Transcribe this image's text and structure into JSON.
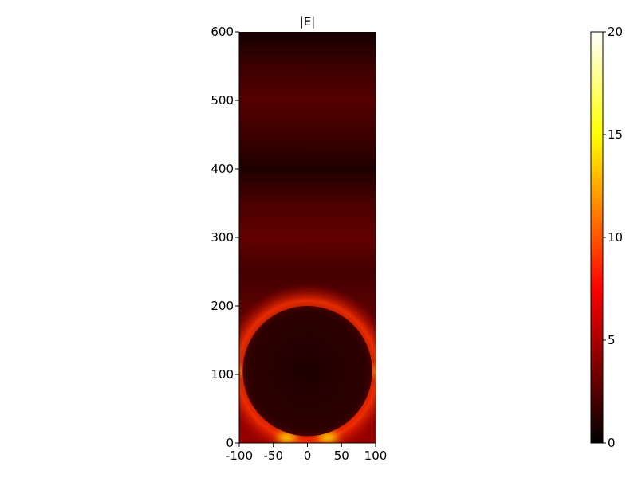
{
  "chart_data": {
    "type": "heatmap",
    "title": "|E|",
    "xlabel": "",
    "ylabel": "",
    "xlim": [
      -100,
      100
    ],
    "ylim": [
      0,
      600
    ],
    "x_ticks": [
      -100,
      -50,
      0,
      50,
      100
    ],
    "y_ticks": [
      0,
      100,
      200,
      300,
      400,
      500,
      600
    ],
    "colorbar": {
      "range": [
        0,
        20
      ],
      "ticks": [
        0,
        5,
        10,
        15,
        20
      ],
      "colormap": "hot",
      "colors": [
        "#000000",
        "#e60000",
        "#ff8c00",
        "#ffe000",
        "#ffffff"
      ]
    },
    "sphere": {
      "center_x": 0,
      "center_y": 105,
      "radius": 95
    },
    "background_field_profile": {
      "y": [
        0,
        100,
        200,
        250,
        300,
        350,
        400,
        450,
        500,
        550,
        600
      ],
      "magnitude": [
        4.5,
        3.5,
        2.6,
        2.0,
        2.9,
        2.2,
        0.9,
        1.8,
        2.5,
        1.8,
        0.6
      ]
    },
    "hotspots": [
      {
        "x": -30,
        "y": 8,
        "magnitude": 15
      },
      {
        "x": 30,
        "y": 8,
        "magnitude": 15
      },
      {
        "x": -95,
        "y": 105,
        "magnitude": 11
      },
      {
        "x": 95,
        "y": 105,
        "magnitude": 11
      }
    ]
  }
}
